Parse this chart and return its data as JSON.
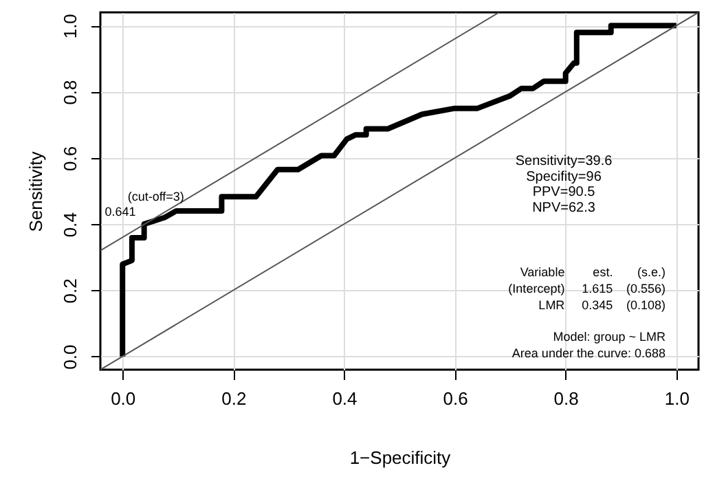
{
  "chart_data": {
    "type": "line",
    "xlabel": "1−Specificity",
    "ylabel": "Sensitivity",
    "xlim": [
      -0.04,
      1.04
    ],
    "ylim": [
      -0.04,
      1.04
    ],
    "xticks": [
      {
        "value": 0,
        "label": "0.0"
      },
      0.2,
      0.4,
      0.6,
      0.8,
      {
        "value": 1,
        "label": "1.0"
      }
    ],
    "yticks": [
      {
        "value": 0,
        "label": "0.0"
      },
      0.2,
      0.4,
      0.6,
      0.8,
      {
        "value": 1,
        "label": "1.0"
      }
    ],
    "grid": true,
    "marker": "none",
    "line_style": "solid",
    "series": [
      {
        "color": "#000000",
        "x": [
          0,
          0,
          0.017,
          0.017,
          0.039,
          0.039,
          0.076,
          0.097,
          0.179,
          0.179,
          0.241,
          0.28,
          0.317,
          0.359,
          0.382,
          0.405,
          0.421,
          0.44,
          0.44,
          0.479,
          0.541,
          0.6,
          0.641,
          0.699,
          0.72,
          0.741,
          0.761,
          0.8,
          0.8,
          0.815,
          0.82,
          0.82,
          0.882,
          0.882,
          1.0
        ],
        "values": [
          0,
          0.279,
          0.29,
          0.359,
          0.359,
          0.4,
          0.42,
          0.44,
          0.44,
          0.483,
          0.483,
          0.565,
          0.565,
          0.607,
          0.607,
          0.657,
          0.67,
          0.67,
          0.688,
          0.688,
          0.732,
          0.75,
          0.75,
          0.787,
          0.81,
          0.81,
          0.832,
          0.832,
          0.856,
          0.887,
          0.887,
          0.979,
          0.979,
          1.0,
          1.0
        ]
      },
      {
        "color": "#555555",
        "x": [
          -0.04,
          1.04
        ],
        "values": [
          -0.04,
          1.04
        ]
      },
      {
        "color": "#555555",
        "x": [
          -0.04,
          0.68
        ],
        "values": [
          0.32,
          1.04
        ]
      }
    ],
    "annotations": [
      {
        "text": "(cut-off=3)",
        "x": 0.039,
        "y": 0.4
      },
      {
        "text": "0.641",
        "x": 0.039,
        "y": 0.4
      },
      "Sensitivity=39.6",
      "Specifity=96",
      "PPV=90.5",
      "NPV=62.3",
      "Variable",
      "est.",
      "(s.e.)",
      "(Intercept)",
      "1.615",
      "(0.556)",
      "LMR",
      "0.345",
      "(0.108)",
      "Model:  group ~ LMR",
      "Area under the curve: 0.688"
    ]
  }
}
